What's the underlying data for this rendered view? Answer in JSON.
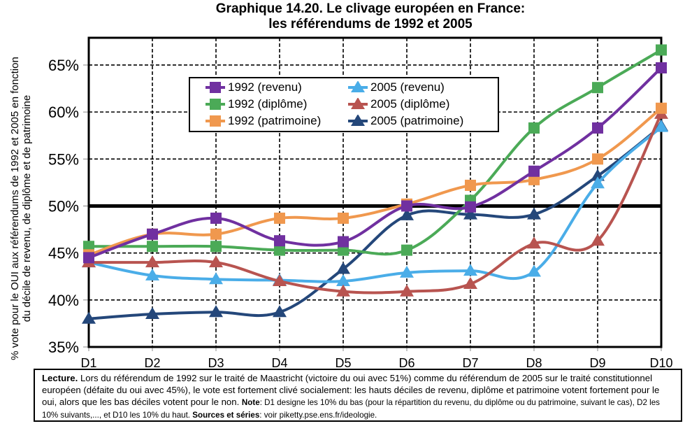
{
  "chart_data": {
    "type": "line",
    "title": "Graphique 14.20. Le clivage européen en France:",
    "subtitle": "les référendums de 1992 et 2005",
    "xlabel": "",
    "ylabel_line1": "% vote pour le OUI aux référendums de 1992 et 2005 en fonction",
    "ylabel_line2": "du décile de revenu, de diplôme et de patrimoine",
    "categories": [
      "D1",
      "D2",
      "D3",
      "D4",
      "D5",
      "D6",
      "D7",
      "D8",
      "D9",
      "D10"
    ],
    "ylim": [
      0.35,
      0.679
    ],
    "yticks": [
      0.35,
      0.4,
      0.45,
      0.5,
      0.55,
      0.6,
      0.65
    ],
    "ytick_labels": [
      "35%",
      "40%",
      "45%",
      "50%",
      "55%",
      "60%",
      "65%"
    ],
    "reference_line": 0.5,
    "grid": true,
    "legend_position": "upper-center",
    "series": [
      {
        "name": "1992 (revenu)",
        "color": "#7030A0",
        "marker": "square",
        "values": [
          0.445,
          0.47,
          0.487,
          0.463,
          0.462,
          0.5,
          0.499,
          0.537,
          0.583,
          0.647
        ]
      },
      {
        "name": "2005 (revenu)",
        "color": "#4AADE8",
        "marker": "triangle",
        "values": [
          0.44,
          0.426,
          0.422,
          0.421,
          0.42,
          0.429,
          0.431,
          0.43,
          0.524,
          0.584
        ]
      },
      {
        "name": "1992 (diplôme)",
        "color": "#4BAA57",
        "marker": "square",
        "values": [
          0.457,
          0.457,
          0.457,
          0.453,
          0.453,
          0.453,
          0.506,
          0.583,
          0.626,
          0.666
        ]
      },
      {
        "name": "2005 (diplôme)",
        "color": "#B85450",
        "marker": "triangle",
        "values": [
          0.44,
          0.44,
          0.44,
          0.42,
          0.409,
          0.409,
          0.417,
          0.46,
          0.463,
          0.598
        ]
      },
      {
        "name": "1992 (patrimoine)",
        "color": "#F0984E",
        "marker": "square",
        "values": [
          0.448,
          0.47,
          0.47,
          0.487,
          0.487,
          0.502,
          0.522,
          0.528,
          0.55,
          0.604
        ]
      },
      {
        "name": "2005 (patrimoine)",
        "color": "#24477A",
        "marker": "triangle",
        "values": [
          0.38,
          0.385,
          0.387,
          0.387,
          0.433,
          0.49,
          0.491,
          0.491,
          0.532,
          0.585
        ]
      }
    ]
  },
  "caption": {
    "lecture_label": "Lecture.",
    "lecture_text_1": " Lors du référendum de 1992 sur le traité de Maastricht (victoire du oui avec 51%) comme du référendum de 2005 sur le traité constitutionnel européen (défaite du oui avec 45%), le vote est fortement clivé socialement: les hauts déciles de revenu, diplôme et patrimoine votent fortement pour le oui, alors que les bas déciles votent pour le non. ",
    "note_label": "Note",
    "note_text": ": D1 designe les 10% du bas (pour la répartition du revenu, du diplôme ou du patrimoine, suivant le cas), D2 les 10% suivants,..., et D10 les 10% du haut.   ",
    "sources_label": "Sources et séries",
    "sources_text": ": voir piketty.pse.ens.fr/ideologie."
  }
}
